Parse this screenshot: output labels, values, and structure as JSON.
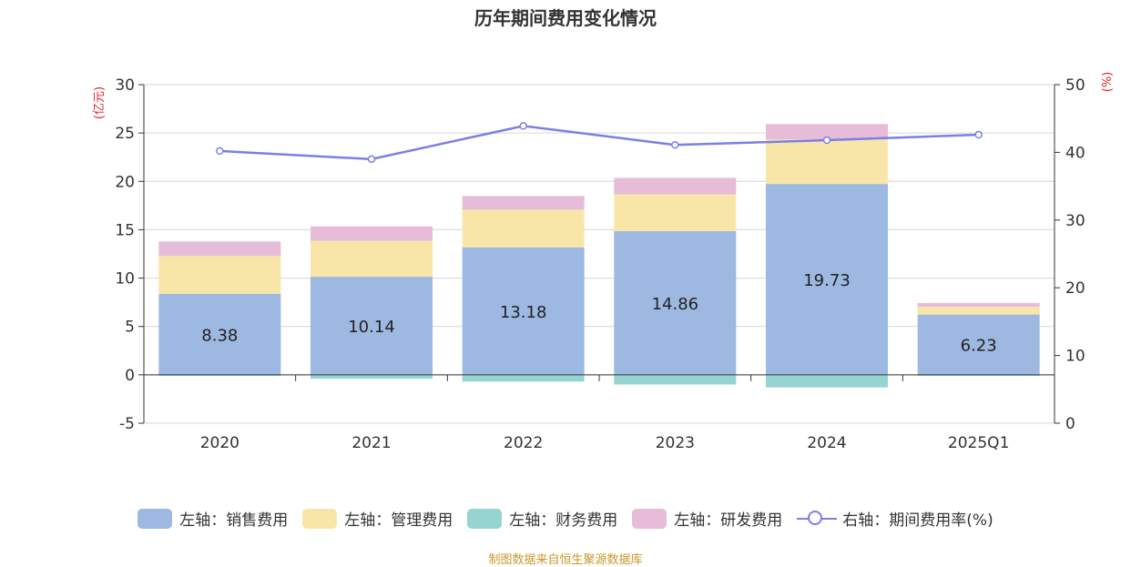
{
  "chart_data": {
    "type": "bar",
    "title": "历年期间费用变化情况",
    "categories": [
      "2020",
      "2021",
      "2022",
      "2023",
      "2024",
      "2025Q1"
    ],
    "left_axis": {
      "unit": "(亿元)",
      "ylim": [
        -5,
        30
      ],
      "ticks": [
        -5,
        0,
        5,
        10,
        15,
        20,
        25,
        30
      ]
    },
    "right_axis": {
      "unit": "(%)",
      "ylim": [
        0,
        50
      ],
      "ticks": [
        0,
        10,
        20,
        30,
        40,
        50
      ]
    },
    "series": [
      {
        "name": "左轴：销售费用",
        "axis": "left",
        "stack": "cost",
        "color": "#9db8e1",
        "values": [
          8.38,
          10.14,
          13.18,
          14.86,
          19.73,
          6.23
        ],
        "show_labels": true
      },
      {
        "name": "左轴：管理费用",
        "axis": "left",
        "stack": "cost",
        "color": "#f8e6a8",
        "values": [
          3.9,
          3.7,
          3.9,
          3.8,
          4.6,
          0.8
        ]
      },
      {
        "name": "左轴：财务费用",
        "axis": "left",
        "stack": "cost",
        "color": "#96d4d2",
        "values": [
          -0.1,
          -0.4,
          -0.7,
          -1.0,
          -1.3,
          -0.1
        ]
      },
      {
        "name": "左轴：研发费用",
        "axis": "left",
        "stack": "cost",
        "color": "#e7bcd9",
        "values": [
          1.5,
          1.5,
          1.4,
          1.7,
          1.6,
          0.4
        ]
      },
      {
        "name": "右轴：期间费用率(%)",
        "axis": "right",
        "type": "line",
        "color": "#7b7fe6",
        "values": [
          40.2,
          39.0,
          43.9,
          41.1,
          41.8,
          42.6
        ]
      }
    ],
    "grid": true,
    "legend_position": "bottom"
  },
  "source_note": "制图数据来自恒生聚源数据库"
}
